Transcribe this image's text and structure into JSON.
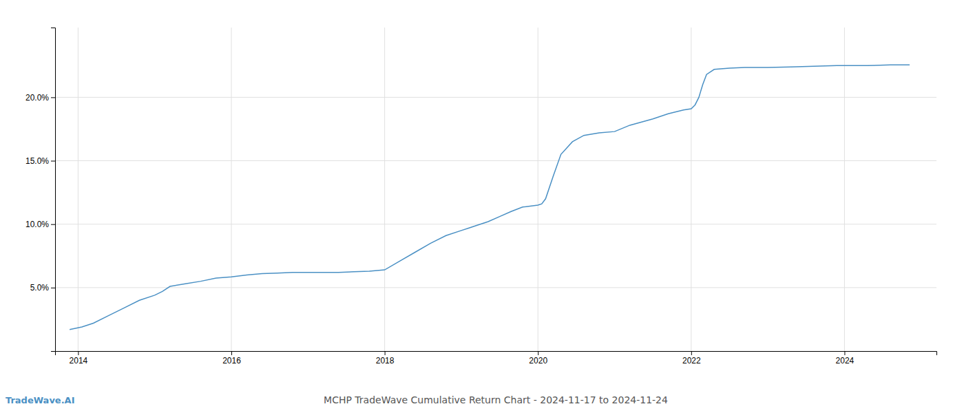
{
  "chart_data": {
    "type": "line",
    "title": "MCHP TradeWave Cumulative Return Chart - 2024-11-17 to 2024-11-24",
    "annotations": [
      "TradeWave.AI"
    ],
    "color": "#4a90c4",
    "grid": true,
    "x": [
      2013.89,
      2014.05,
      2014.2,
      2014.4,
      2014.6,
      2014.8,
      2015.0,
      2015.1,
      2015.2,
      2015.4,
      2015.6,
      2015.8,
      2016.0,
      2016.2,
      2016.4,
      2016.6,
      2016.8,
      2017.0,
      2017.2,
      2017.4,
      2017.6,
      2017.8,
      2018.0,
      2018.2,
      2018.4,
      2018.6,
      2018.8,
      2019.0,
      2019.1,
      2019.2,
      2019.35,
      2019.5,
      2019.65,
      2019.8,
      2020.0,
      2020.05,
      2020.1,
      2020.2,
      2020.3,
      2020.45,
      2020.6,
      2020.8,
      2021.0,
      2021.2,
      2021.5,
      2021.7,
      2021.9,
      2022.0,
      2022.05,
      2022.1,
      2022.15,
      2022.2,
      2022.3,
      2022.5,
      2022.7,
      2022.9,
      2023.0,
      2023.3,
      2023.6,
      2023.9,
      2024.0,
      2024.3,
      2024.6,
      2024.85
    ],
    "values": [
      1.7,
      1.9,
      2.2,
      2.8,
      3.4,
      4.0,
      4.4,
      4.7,
      5.1,
      5.3,
      5.5,
      5.75,
      5.85,
      6.0,
      6.1,
      6.15,
      6.2,
      6.2,
      6.2,
      6.2,
      6.25,
      6.3,
      6.4,
      7.1,
      7.8,
      8.5,
      9.1,
      9.5,
      9.7,
      9.9,
      10.2,
      10.6,
      11.0,
      11.35,
      11.5,
      11.6,
      12.0,
      13.8,
      15.5,
      16.5,
      17.0,
      17.2,
      17.3,
      17.8,
      18.3,
      18.7,
      19.0,
      19.1,
      19.4,
      20.0,
      21.0,
      21.8,
      22.2,
      22.3,
      22.35,
      22.35,
      22.35,
      22.4,
      22.45,
      22.5,
      22.5,
      22.5,
      22.55,
      22.55
    ],
    "xlim": [
      2013.7,
      2025.2
    ],
    "ylim": [
      0.0,
      25.5
    ],
    "xticks": [
      2014,
      2016,
      2018,
      2020,
      2022,
      2024
    ],
    "yticks": [
      {
        "value": 5.0,
        "label": "5.0%"
      },
      {
        "value": 10.0,
        "label": "10.0%"
      },
      {
        "value": 15.0,
        "label": "15.0%"
      },
      {
        "value": 20.0,
        "label": "20.0%"
      }
    ]
  }
}
